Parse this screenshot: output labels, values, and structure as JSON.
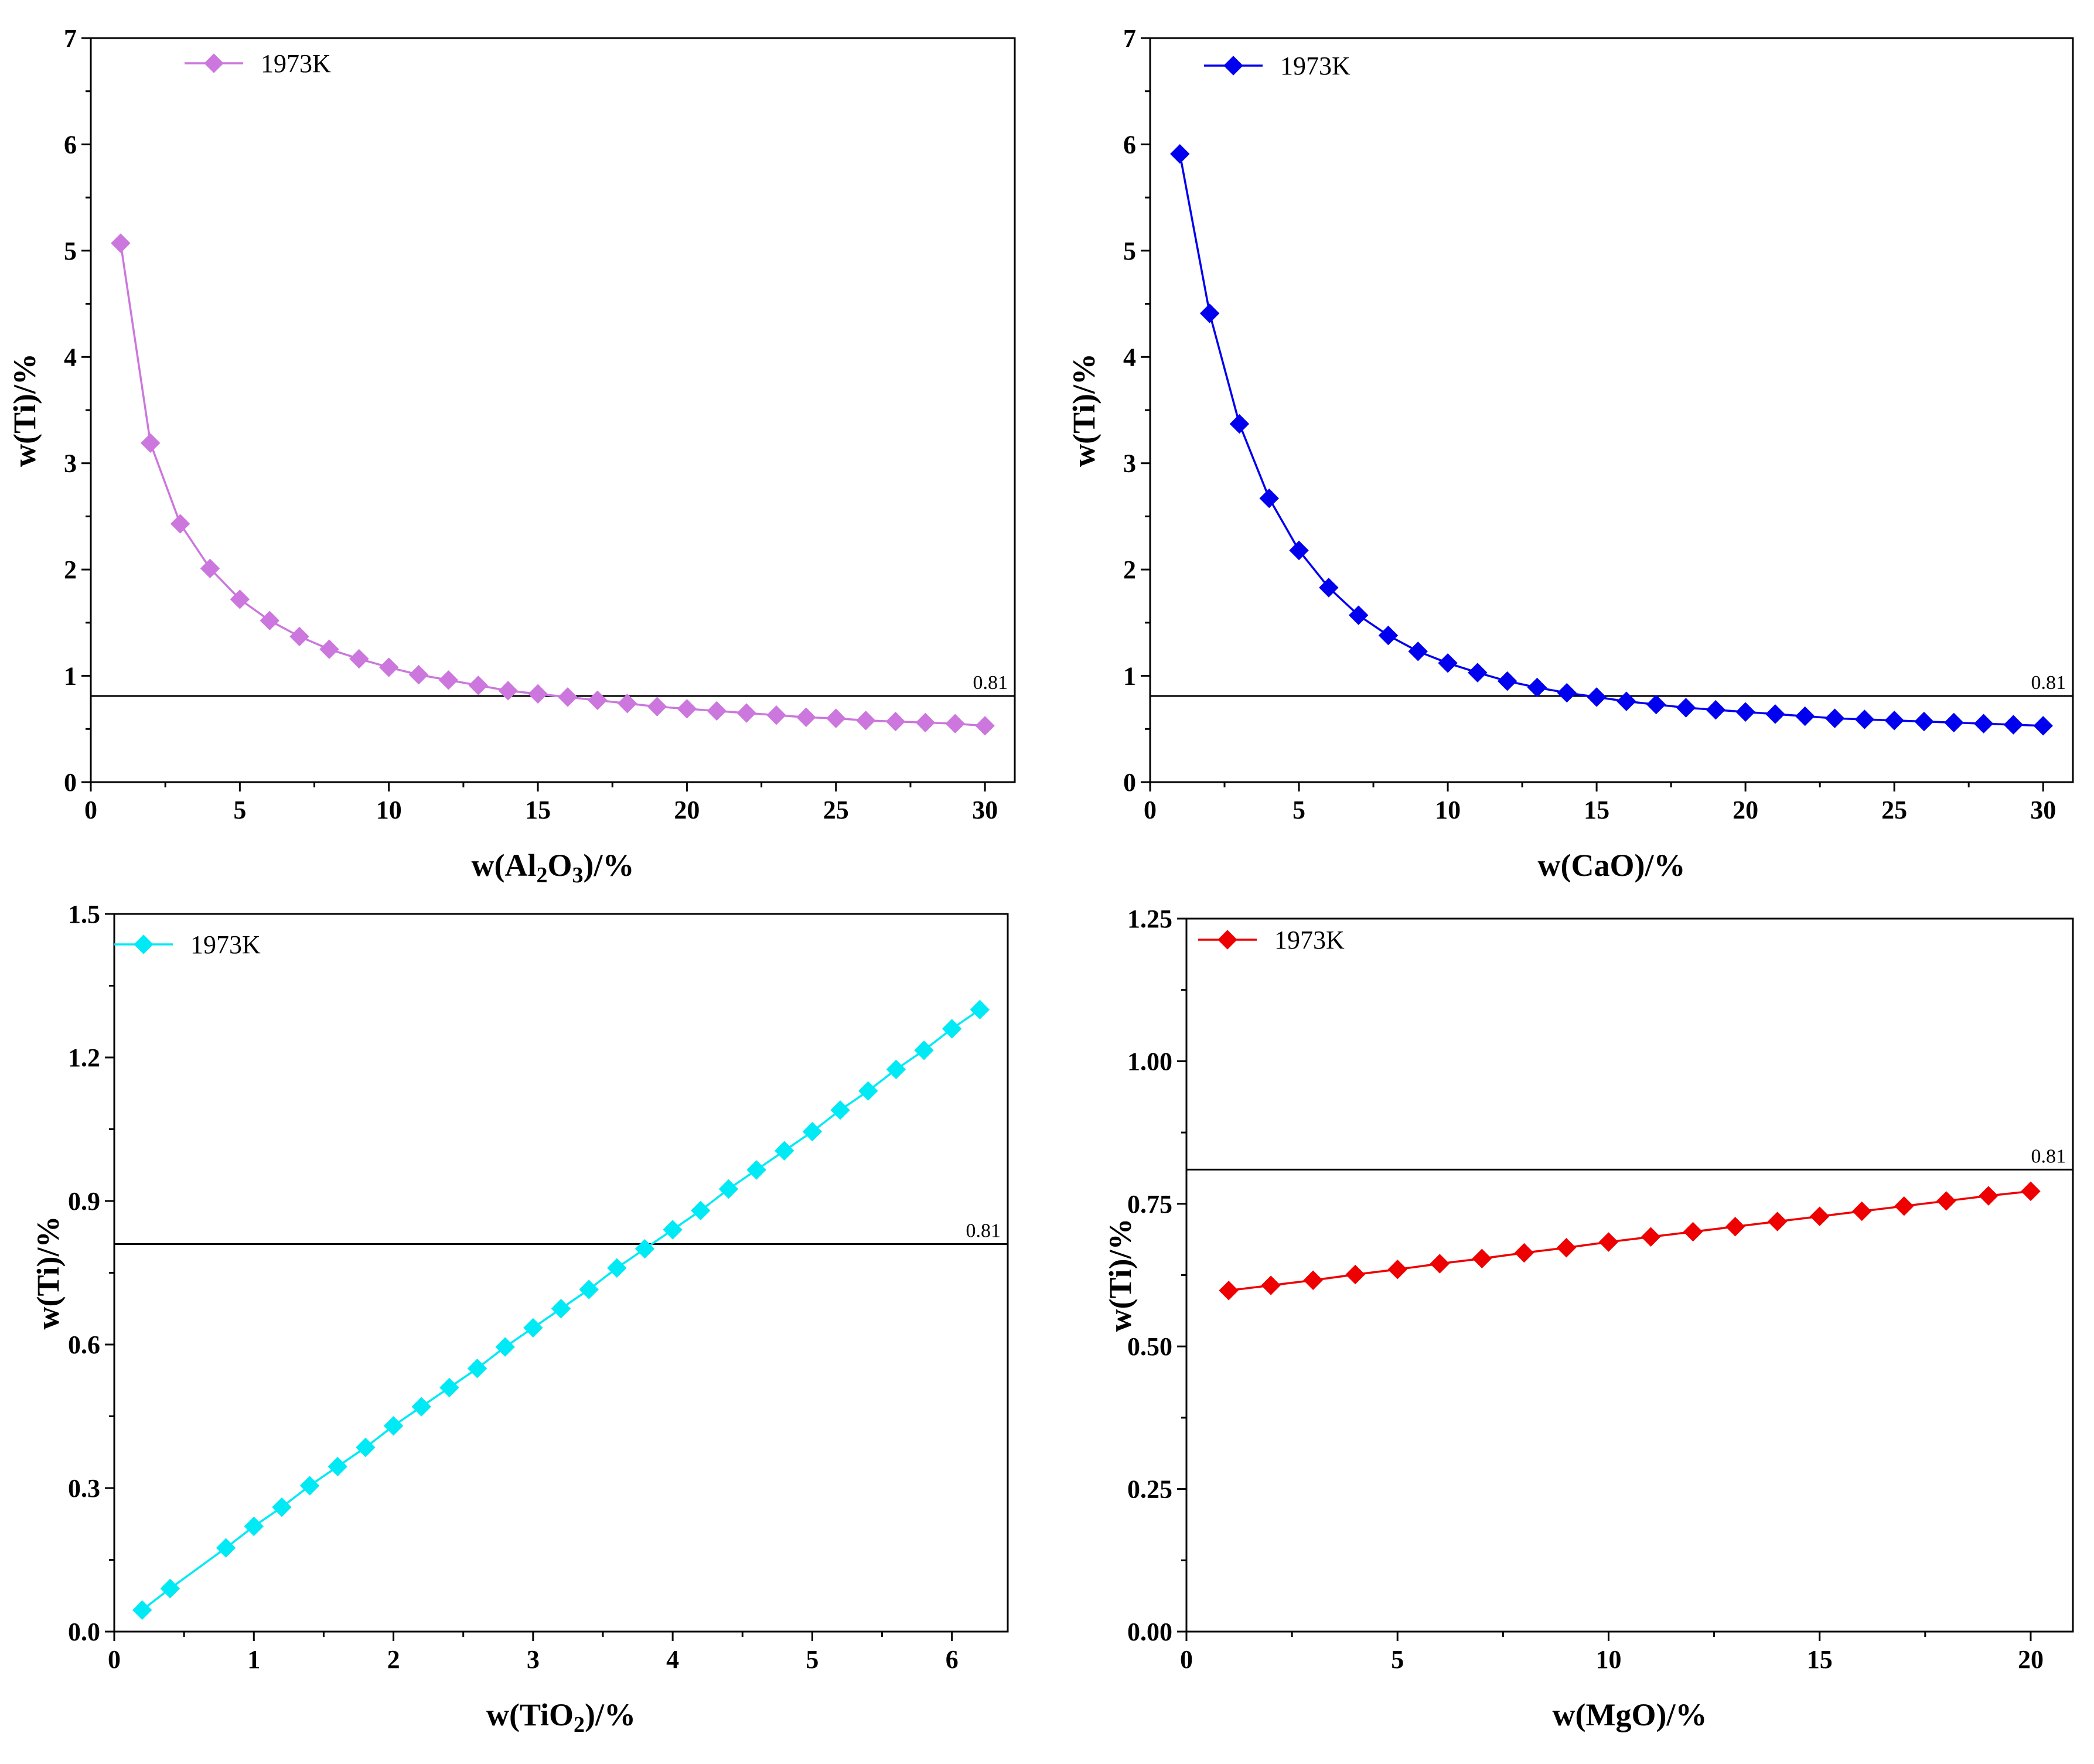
{
  "chart_data": [
    {
      "type": "line",
      "id": "al2o3",
      "color": "#cc77dd",
      "xlabel_parts": [
        [
          "w(Al",
          "normal"
        ],
        [
          "2",
          "sub"
        ],
        [
          "O",
          "normal"
        ],
        [
          "3",
          "sub"
        ],
        [
          ")/%",
          "normal"
        ]
      ],
      "ylabel": "w(Ti)/%",
      "xlim": [
        0,
        31
      ],
      "ylim": [
        0,
        7
      ],
      "xticks": [
        0,
        5,
        10,
        15,
        20,
        25,
        30
      ],
      "yticks": [
        0,
        1,
        2,
        3,
        4,
        5,
        6,
        7
      ],
      "tick_decimals": 0,
      "reference": {
        "value": 0.81,
        "label": "0.81"
      },
      "series": [
        {
          "name": "1973K",
          "x": [
            1,
            2,
            3,
            4,
            5,
            6,
            7,
            8,
            9,
            10,
            11,
            12,
            13,
            14,
            15,
            16,
            17,
            18,
            19,
            20,
            21,
            22,
            23,
            24,
            25,
            26,
            27,
            28,
            29,
            30
          ],
          "y": [
            5.07,
            3.19,
            2.43,
            2.01,
            1.72,
            1.52,
            1.37,
            1.25,
            1.16,
            1.08,
            1.01,
            0.96,
            0.91,
            0.86,
            0.83,
            0.8,
            0.77,
            0.74,
            0.71,
            0.69,
            0.67,
            0.65,
            0.63,
            0.61,
            0.6,
            0.58,
            0.57,
            0.56,
            0.55,
            0.53
          ]
        }
      ]
    },
    {
      "type": "line",
      "id": "cao",
      "color": "#0000ee",
      "xlabel_parts": [
        [
          "w(CaO)/%",
          "normal"
        ]
      ],
      "ylabel": "w(Ti)/%",
      "xlim": [
        0,
        31
      ],
      "ylim": [
        0,
        7
      ],
      "xticks": [
        0,
        5,
        10,
        15,
        20,
        25,
        30
      ],
      "yticks": [
        0,
        1,
        2,
        3,
        4,
        5,
        6,
        7
      ],
      "tick_decimals": 0,
      "reference": {
        "value": 0.81,
        "label": "0.81"
      },
      "series": [
        {
          "name": "1973K",
          "x": [
            1,
            2,
            3,
            4,
            5,
            6,
            7,
            8,
            9,
            10,
            11,
            12,
            13,
            14,
            15,
            16,
            17,
            18,
            19,
            20,
            21,
            22,
            23,
            24,
            25,
            26,
            27,
            28,
            29,
            30
          ],
          "y": [
            5.91,
            4.41,
            3.37,
            2.67,
            2.18,
            1.83,
            1.57,
            1.38,
            1.23,
            1.12,
            1.03,
            0.95,
            0.89,
            0.84,
            0.8,
            0.76,
            0.73,
            0.7,
            0.68,
            0.66,
            0.64,
            0.62,
            0.6,
            0.59,
            0.58,
            0.57,
            0.56,
            0.55,
            0.54,
            0.53
          ]
        }
      ]
    },
    {
      "type": "line",
      "id": "tio2",
      "color": "#00eaf5",
      "xlabel_parts": [
        [
          "w(TiO",
          "normal"
        ],
        [
          "2",
          "sub"
        ],
        [
          ")/%",
          "normal"
        ]
      ],
      "ylabel": "w(Ti)/%",
      "xlim": [
        0,
        6.4
      ],
      "ylim": [
        0,
        1.5
      ],
      "xticks": [
        0,
        1,
        2,
        3,
        4,
        5,
        6
      ],
      "yticks": [
        0.0,
        0.3,
        0.6,
        0.9,
        1.2,
        1.5
      ],
      "tick_decimals": 1,
      "reference": {
        "value": 0.81,
        "label": "0.81"
      },
      "series": [
        {
          "name": "1973K",
          "x": [
            0.2,
            0.4,
            0.8,
            1.0,
            1.2,
            1.4,
            1.6,
            1.8,
            2.0,
            2.2,
            2.4,
            2.6,
            2.8,
            3.0,
            3.2,
            3.4,
            3.6,
            3.8,
            4.0,
            4.2,
            4.4,
            4.6,
            4.8,
            5.0,
            5.2,
            5.4,
            5.6,
            5.8,
            6.0,
            6.2
          ],
          "y": [
            0.045,
            0.09,
            0.175,
            0.22,
            0.26,
            0.305,
            0.345,
            0.385,
            0.43,
            0.47,
            0.51,
            0.55,
            0.595,
            0.635,
            0.675,
            0.715,
            0.76,
            0.8,
            0.84,
            0.88,
            0.925,
            0.965,
            1.005,
            1.045,
            1.09,
            1.13,
            1.175,
            1.215,
            1.26,
            1.3
          ]
        }
      ]
    },
    {
      "type": "line",
      "id": "mgo",
      "color": "#ee0000",
      "xlabel_parts": [
        [
          "w(MgO)/%",
          "normal"
        ]
      ],
      "ylabel": "w(Ti)/%",
      "xlim": [
        0,
        21
      ],
      "ylim": [
        0,
        1.25
      ],
      "xticks": [
        0,
        5,
        10,
        15,
        20
      ],
      "yticks": [
        0.0,
        0.25,
        0.5,
        0.75,
        1.0,
        1.25
      ],
      "tick_decimals": 2,
      "reference": {
        "value": 0.81,
        "label": "0.81"
      },
      "series": [
        {
          "name": "1973K",
          "x": [
            1,
            2,
            3,
            4,
            5,
            6,
            7,
            8,
            9,
            10,
            11,
            12,
            13,
            14,
            15,
            16,
            17,
            18,
            19,
            20
          ],
          "y": [
            0.598,
            0.607,
            0.616,
            0.626,
            0.635,
            0.645,
            0.654,
            0.664,
            0.673,
            0.683,
            0.692,
            0.701,
            0.71,
            0.719,
            0.728,
            0.737,
            0.746,
            0.755,
            0.764,
            0.772
          ]
        }
      ]
    }
  ]
}
